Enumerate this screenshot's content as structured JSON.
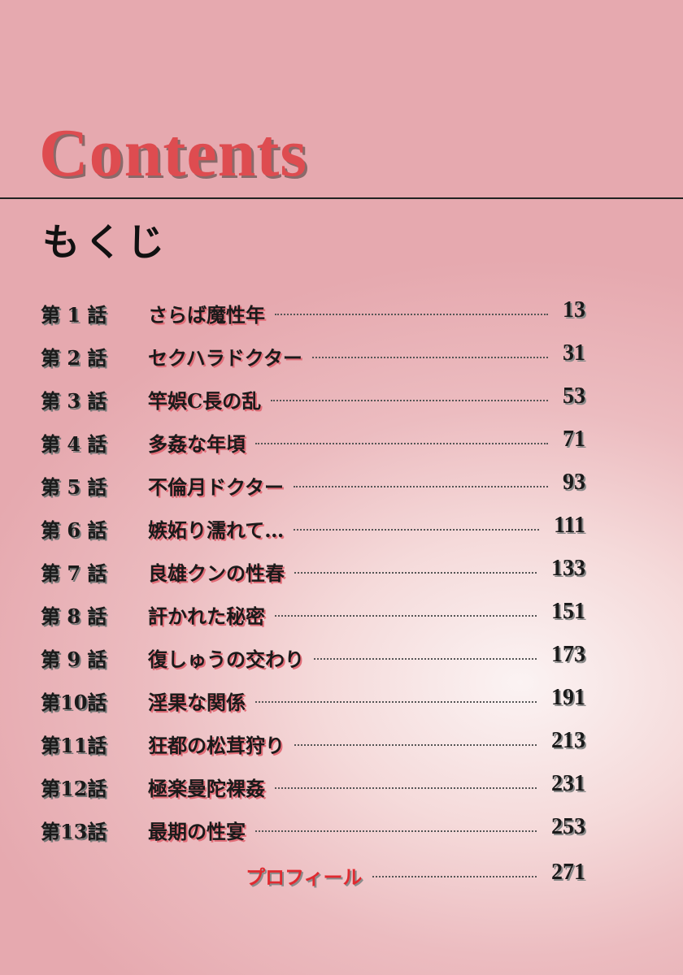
{
  "header": {
    "title": "Contents",
    "subtitle": "もくじ"
  },
  "entries": [
    {
      "label": "第 1 話",
      "title": "さらば魔性年",
      "page": "13"
    },
    {
      "label": "第 2 話",
      "title": "セクハラドクター",
      "page": "31"
    },
    {
      "label": "第 3 話",
      "title": "竿娯C長の乱",
      "page": "53"
    },
    {
      "label": "第 4 話",
      "title": "多姦な年頃",
      "page": "71"
    },
    {
      "label": "第 5 話",
      "title": "不倫月ドクター",
      "page": "93"
    },
    {
      "label": "第 6 話",
      "title": "嫉妬り濡れて…",
      "page": "111"
    },
    {
      "label": "第 7 話",
      "title": "良雄クンの性春",
      "page": "133"
    },
    {
      "label": "第 8 話",
      "title": "訐かれた秘密",
      "page": "151"
    },
    {
      "label": "第 9 話",
      "title": "復しゅうの交わり",
      "page": "173"
    },
    {
      "label": "第10話",
      "title": "淫果な関係",
      "page": "191"
    },
    {
      "label": "第11話",
      "title": "狂都の松茸狩り",
      "page": "213"
    },
    {
      "label": "第12話",
      "title": "極楽曼陀裸姦",
      "page": "231"
    },
    {
      "label": "第13話",
      "title": "最期の性宴",
      "page": "253"
    }
  ],
  "profile": {
    "title": "プロフィール",
    "page": "271"
  },
  "colors": {
    "title": "#de4c50",
    "profile": "#e02a30"
  }
}
